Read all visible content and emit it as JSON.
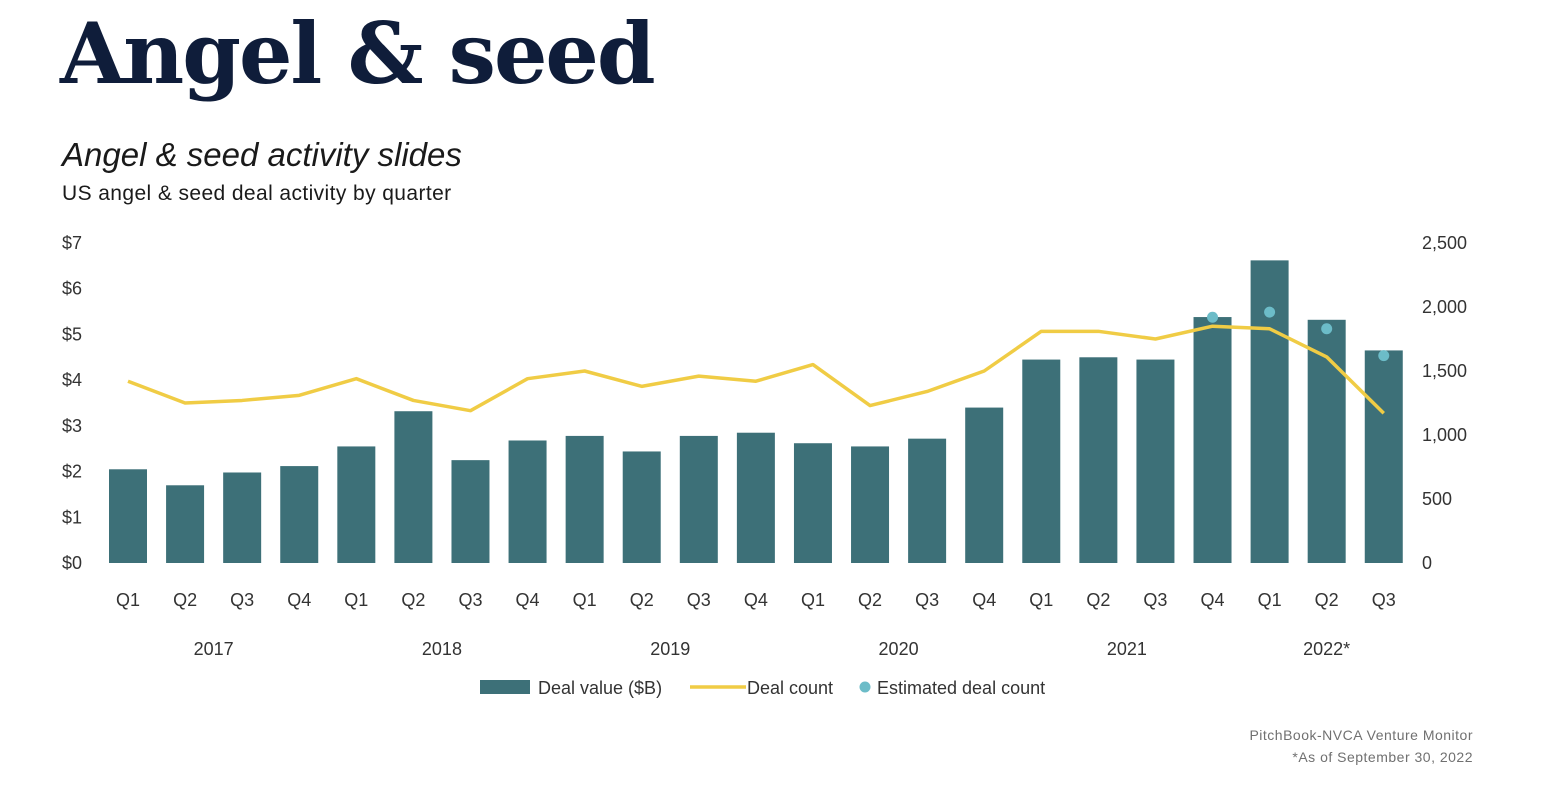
{
  "page": {
    "heading": "Angel & seed",
    "subtitle": "Angel & seed activity slides",
    "description": "US angel & seed deal activity by quarter",
    "source_line1": "PitchBook-NVCA Venture Monitor",
    "source_line2": "*As of September 30, 2022"
  },
  "chart_data": {
    "type": "bar",
    "title": "Angel & seed activity slides",
    "subtitle": "US angel & seed deal activity by quarter",
    "categories": [
      "Q1",
      "Q2",
      "Q3",
      "Q4",
      "Q1",
      "Q2",
      "Q3",
      "Q4",
      "Q1",
      "Q2",
      "Q3",
      "Q4",
      "Q1",
      "Q2",
      "Q3",
      "Q4",
      "Q1",
      "Q2",
      "Q3",
      "Q4",
      "Q1",
      "Q2",
      "Q3"
    ],
    "year_groups": [
      {
        "label": "2017",
        "start": 0,
        "end": 3
      },
      {
        "label": "2018",
        "start": 4,
        "end": 7
      },
      {
        "label": "2019",
        "start": 8,
        "end": 11
      },
      {
        "label": "2020",
        "start": 12,
        "end": 15
      },
      {
        "label": "2021",
        "start": 16,
        "end": 19
      },
      {
        "label": "2022*",
        "start": 20,
        "end": 22
      }
    ],
    "series": [
      {
        "name": "Deal value ($B)",
        "type": "bar",
        "axis": "left",
        "color": "#3d7078",
        "values": [
          2.05,
          1.7,
          1.98,
          2.12,
          2.55,
          3.32,
          2.25,
          2.68,
          2.78,
          2.44,
          2.78,
          2.85,
          2.62,
          2.55,
          2.72,
          3.4,
          4.45,
          4.5,
          4.45,
          5.38,
          6.62,
          5.32,
          4.65
        ]
      },
      {
        "name": "Deal count",
        "type": "line",
        "axis": "right",
        "color": "#f0cc45",
        "values": [
          1420,
          1250,
          1270,
          1310,
          1440,
          1270,
          1190,
          1440,
          1500,
          1380,
          1460,
          1420,
          1550,
          1230,
          1340,
          1500,
          1810,
          1810,
          1750,
          1850,
          1830,
          1610,
          1170
        ]
      },
      {
        "name": "Estimated deal count",
        "type": "scatter",
        "axis": "right",
        "color": "#6cbcc8",
        "values": [
          null,
          null,
          null,
          null,
          null,
          null,
          null,
          null,
          null,
          null,
          null,
          null,
          null,
          null,
          null,
          null,
          null,
          null,
          null,
          1920,
          1960,
          1830,
          1620
        ]
      }
    ],
    "y_left": {
      "min": 0,
      "max": 7,
      "ticks": [
        "$0",
        "$1",
        "$2",
        "$3",
        "$4",
        "$5",
        "$6",
        "$7"
      ]
    },
    "y_right": {
      "min": 0,
      "max": 2500,
      "ticks": [
        "0",
        "500",
        "1,000",
        "1,500",
        "2,000",
        "2,500"
      ]
    },
    "legend": [
      {
        "label": "Deal value ($B)",
        "kind": "bar",
        "color": "#3d7078"
      },
      {
        "label": "Deal count",
        "kind": "line",
        "color": "#f0cc45"
      },
      {
        "label": "Estimated deal count",
        "kind": "dot",
        "color": "#6cbcc8"
      }
    ],
    "legend_position": "bottom-center"
  }
}
